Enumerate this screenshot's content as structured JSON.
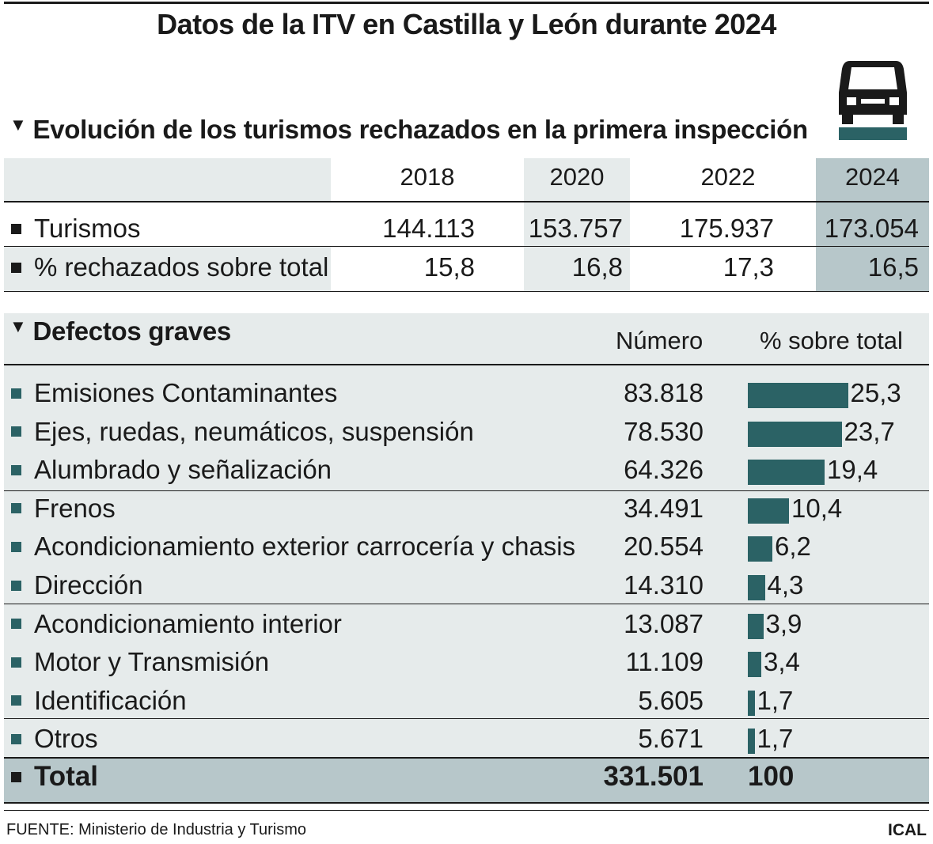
{
  "title": "Datos de la ITV en Castilla y León durante 2024",
  "evolution": {
    "heading": "Evolución de los turismos rechazados en la primera inspección",
    "years": [
      "2018",
      "2020",
      "2022",
      "2024"
    ],
    "rows": [
      {
        "label": "Turismos",
        "values": [
          "144.113",
          "153.757",
          "175.937",
          "173.054"
        ]
      },
      {
        "label": "% rechazados sobre total",
        "values": [
          "15,8",
          "16,8",
          "17,3",
          "16,5"
        ]
      }
    ]
  },
  "defects": {
    "heading": "Defectos graves",
    "col_number": "Número",
    "col_pct": "% sobre total",
    "total_label": "Total",
    "total_number": "331.501",
    "total_pct": "100"
  },
  "chart_data": {
    "type": "bar",
    "categories": [
      "Emisiones Contaminantes",
      "Ejes, ruedas, neumáticos, suspensión",
      "Alumbrado y señalización",
      "Frenos",
      "Acondicionamiento exterior carrocería y chasis",
      "Dirección",
      "Acondicionamiento interior",
      "Motor y Transmisión",
      "Identificación",
      "Otros"
    ],
    "numbers": [
      "83.818",
      "78.530",
      "64.326",
      "34.491",
      "20.554",
      "14.310",
      "13.087",
      "11.109",
      "5.605",
      "5.671"
    ],
    "pct_labels": [
      "25,3",
      "23,7",
      "19,4",
      "10,4",
      "6,2",
      "4,3",
      "3,9",
      "3,4",
      "1,7",
      "1,7"
    ],
    "values": [
      25.3,
      23.7,
      19.4,
      10.4,
      6.2,
      4.3,
      3.9,
      3.4,
      1.7,
      1.7
    ],
    "title": "",
    "xlabel": "",
    "ylabel": ""
  },
  "colors": {
    "bar": "#2b6265",
    "highlight": "#b7c7ca",
    "shade": "#e6ebeb"
  },
  "footer": {
    "source": "FUENTE: Ministerio de Industria y Turismo",
    "brand": "ICAL"
  }
}
